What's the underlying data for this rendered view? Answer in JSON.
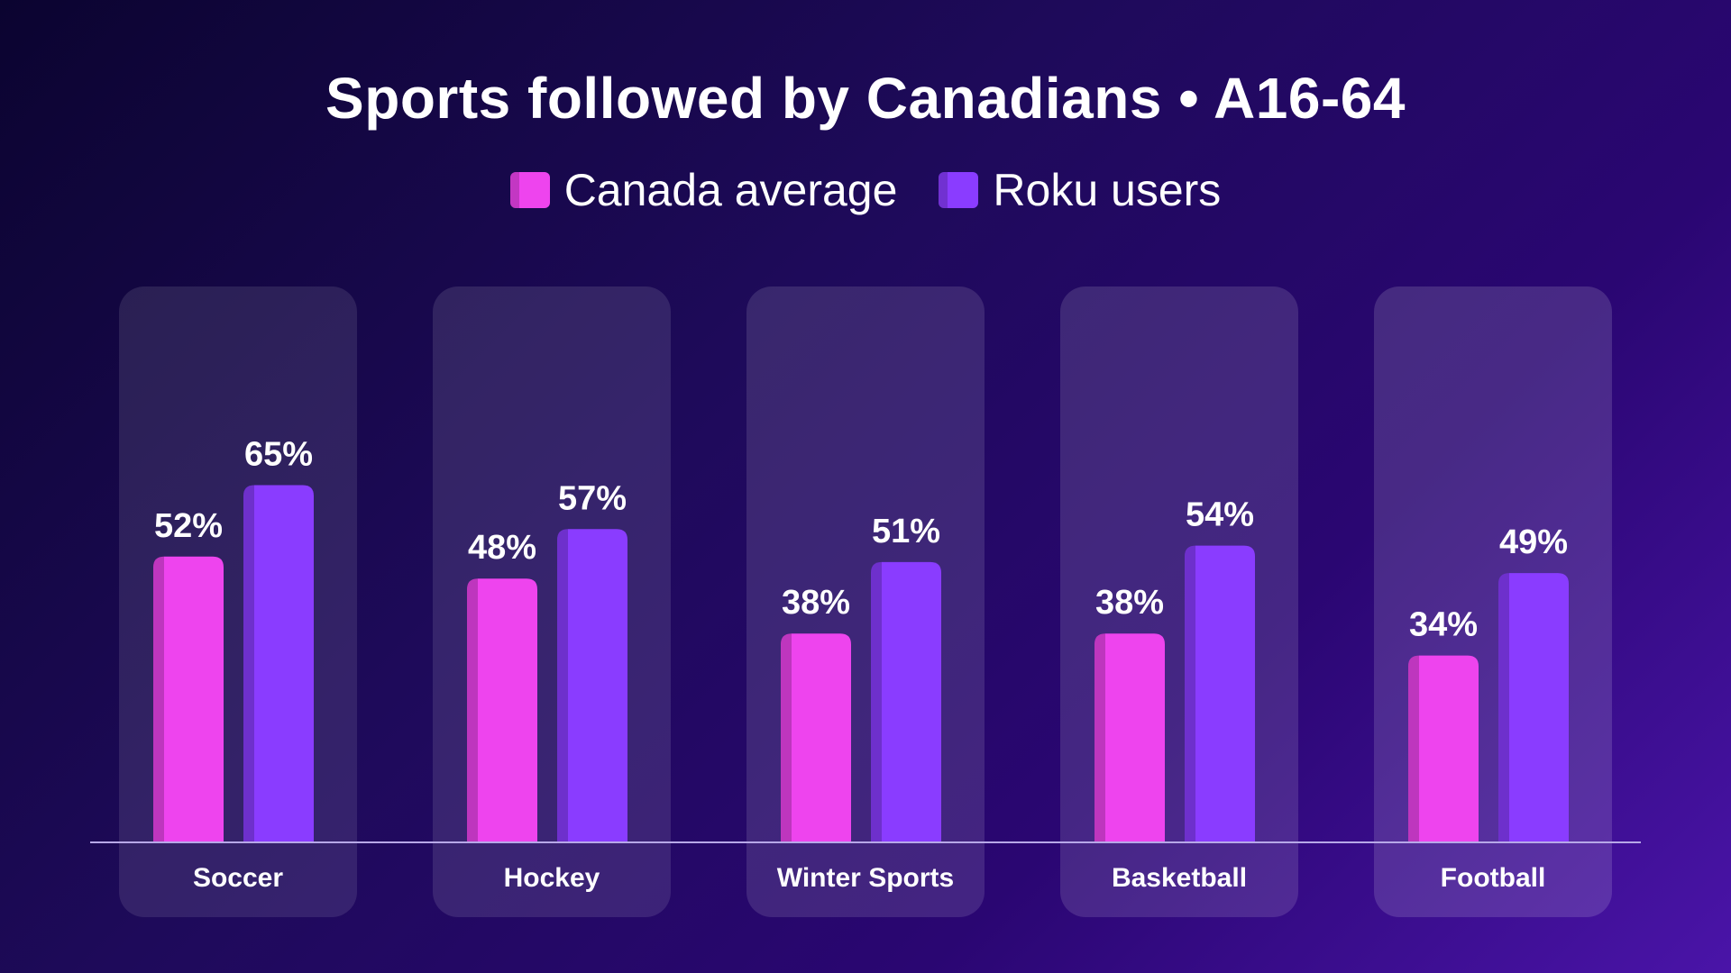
{
  "chart_data": {
    "type": "bar",
    "title": "Sports followed by Canadians • A16-64",
    "categories": [
      "Soccer",
      "Hockey",
      "Winter Sports",
      "Basketball",
      "Football"
    ],
    "series": [
      {
        "name": "Canada average",
        "values": [
          52,
          48,
          38,
          38,
          34
        ],
        "labels": [
          "52%",
          "48%",
          "38%",
          "38%",
          "34%"
        ],
        "color": "#ee44ee"
      },
      {
        "name": "Roku users",
        "values": [
          65,
          57,
          51,
          54,
          49
        ],
        "labels": [
          "65%",
          "57%",
          "51%",
          "54%",
          "49%"
        ],
        "color": "#8a3cff"
      }
    ],
    "ylim": [
      0,
      100
    ],
    "grid": false,
    "legend": "top-center"
  }
}
